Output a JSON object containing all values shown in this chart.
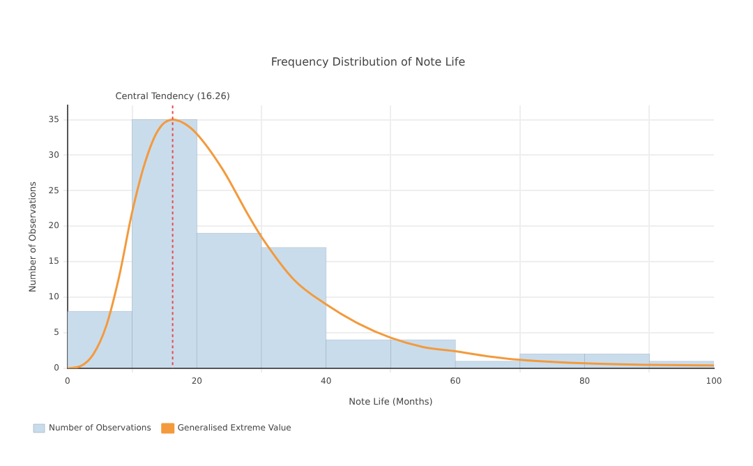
{
  "chart_data": {
    "type": "histogram",
    "title": "Frequency Distribution of Note Life",
    "xlabel": "Note Life (Months)",
    "ylabel": "Number of Observations",
    "bins": [
      0,
      10,
      20,
      30,
      40,
      50,
      60,
      70,
      80,
      90,
      100
    ],
    "series": [
      {
        "type": "histogram",
        "name": "Number of Observations",
        "color": "#c9dcec",
        "values": [
          8,
          35,
          19,
          17,
          4,
          4,
          1,
          2,
          2,
          1
        ]
      },
      {
        "type": "line",
        "name": "Generalised Extreme Value",
        "color": "#f39a3c",
        "x": [
          0,
          2,
          4,
          6,
          8,
          10,
          12,
          14,
          16.26,
          18,
          20,
          24,
          28,
          30,
          35,
          40,
          45,
          50,
          55,
          60,
          65,
          70,
          80,
          90,
          100
        ],
        "values": [
          0,
          0.3,
          2,
          6,
          13,
          22,
          29,
          33.5,
          35,
          34.5,
          33,
          28,
          21.5,
          18.5,
          12.5,
          9,
          6.3,
          4.3,
          3,
          2.4,
          1.7,
          1.2,
          0.7,
          0.5,
          0.4
        ]
      }
    ],
    "ref_lines": [
      {
        "axis": "x",
        "value": 16.26,
        "label": "Central Tendency (16.26)",
        "color": "#e8474c",
        "line_style": "dotted"
      }
    ],
    "xlim": [
      0,
      100
    ],
    "xticks": [
      0,
      20,
      40,
      60,
      80,
      100
    ],
    "ylim": [
      0,
      37
    ],
    "yticks": [
      0,
      5,
      10,
      15,
      20,
      25,
      30,
      35
    ],
    "grid": true,
    "legend": "bottom left",
    "marker": "none"
  }
}
